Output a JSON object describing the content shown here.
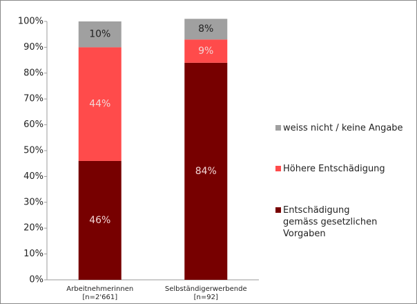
{
  "chart_data": {
    "type": "stacked_bar",
    "categories": [
      "Arbeitnehmerinnen",
      "Selbständigerwerbende"
    ],
    "category_notes": [
      "[n=2'661]",
      "[n=92]"
    ],
    "series": [
      {
        "name": "Entschädigung gemäss gesetzlichen Vorgaben",
        "color": "#770000",
        "values": [
          46,
          84
        ],
        "value_labels": [
          "46%",
          "84%"
        ]
      },
      {
        "name": "Höhere Entschädigung",
        "color": "#ff4b4b",
        "values": [
          44,
          9
        ],
        "value_labels": [
          "44%",
          "9%"
        ]
      },
      {
        "name": "weiss nicht / keine Angabe",
        "color": "#a0a0a0",
        "values": [
          10,
          8
        ],
        "value_labels": [
          "10%",
          "8%"
        ]
      }
    ],
    "ylim": [
      0,
      100
    ],
    "yticks": [
      {
        "value": 0,
        "label": "0%"
      },
      {
        "value": 10,
        "label": "10%"
      },
      {
        "value": 20,
        "label": "20%"
      },
      {
        "value": 30,
        "label": "30%"
      },
      {
        "value": 40,
        "label": "40%"
      },
      {
        "value": 50,
        "label": "50%"
      },
      {
        "value": 60,
        "label": "60%"
      },
      {
        "value": 70,
        "label": "70%"
      },
      {
        "value": 80,
        "label": "80%"
      },
      {
        "value": 90,
        "label": "90%"
      },
      {
        "value": 100,
        "label": "100%"
      }
    ],
    "legend": "right"
  }
}
